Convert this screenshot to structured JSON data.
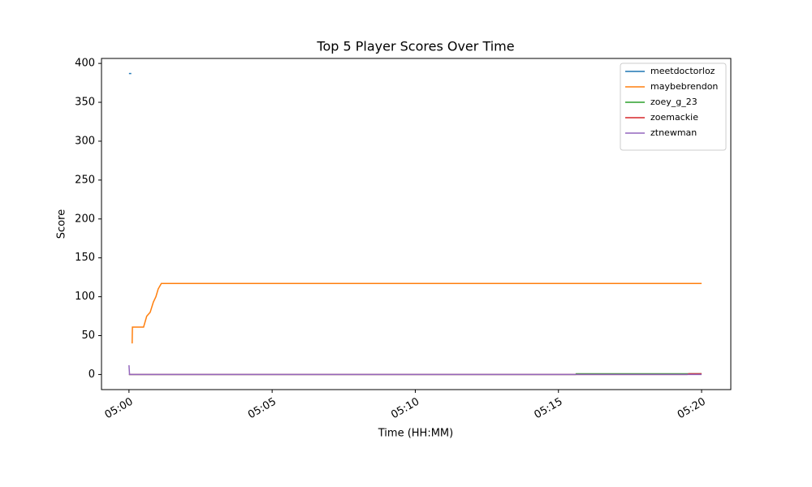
{
  "chart_data": {
    "type": "line",
    "title": "Top 5 Player Scores Over Time",
    "xlabel": "Time (HH:MM)",
    "ylabel": "Score",
    "xlim": [
      -0.96,
      21.02
    ],
    "ylim": [
      -19.4,
      406.4
    ],
    "xticks": [
      {
        "value": 0,
        "label": "05:00"
      },
      {
        "value": 5,
        "label": "05:05"
      },
      {
        "value": 10,
        "label": "05:10"
      },
      {
        "value": 15,
        "label": "05:15"
      },
      {
        "value": 20,
        "label": "05:20"
      }
    ],
    "yticks": [
      0,
      50,
      100,
      150,
      200,
      250,
      300,
      350,
      400
    ],
    "legend": "upper right",
    "grid": false,
    "series": [
      {
        "name": "meetdoctorloz",
        "color": "#1f77b4",
        "x": [
          0,
          0.08
        ],
        "values": [
          387,
          387
        ]
      },
      {
        "name": "maybebrendon",
        "color": "#ff7f0e",
        "x": [
          0.11,
          0.12,
          0.51,
          0.62,
          0.74,
          0.85,
          0.94,
          1.02,
          1.13,
          20
        ],
        "values": [
          40,
          61,
          61,
          75,
          80,
          93,
          100,
          110,
          117,
          117
        ]
      },
      {
        "name": "zoey_g_23",
        "color": "#2ca02c",
        "x": [
          0,
          15.6,
          15.62,
          20
        ],
        "values": [
          0,
          0,
          1,
          1
        ]
      },
      {
        "name": "zoemackie",
        "color": "#d62728",
        "x": [
          0,
          19.5,
          19.55,
          20
        ],
        "values": [
          0,
          0,
          1,
          1
        ]
      },
      {
        "name": "ztnewman",
        "color": "#9467bd",
        "x": [
          0,
          0.02,
          20
        ],
        "values": [
          12,
          0,
          0
        ]
      }
    ]
  }
}
